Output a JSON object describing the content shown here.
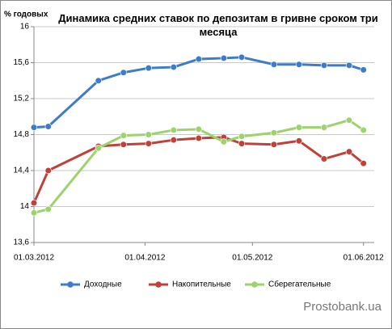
{
  "chart_data": {
    "type": "line",
    "title": "Динамика средних ставок по депозитам в гривне сроком три месяца",
    "y_label": "% годовых",
    "watermark": "Prostobank.ua",
    "x": [
      "2012-03-01",
      "2012-03-05",
      "2012-03-19",
      "2012-03-26",
      "2012-04-02",
      "2012-04-09",
      "2012-04-16",
      "2012-04-23",
      "2012-04-28",
      "2012-05-07",
      "2012-05-14",
      "2012-05-21",
      "2012-05-28",
      "2012-06-01"
    ],
    "series": [
      {
        "name": "Доходные",
        "color": "#3d7cc9",
        "values": [
          14.88,
          14.89,
          15.4,
          15.49,
          15.54,
          15.55,
          15.64,
          15.65,
          15.66,
          15.58,
          15.58,
          15.57,
          15.57,
          15.52
        ]
      },
      {
        "name": "Накопительные",
        "color": "#c0413a",
        "values": [
          14.04,
          14.4,
          14.67,
          14.69,
          14.7,
          14.74,
          14.76,
          14.77,
          14.7,
          14.69,
          14.73,
          14.53,
          14.61,
          14.48
        ]
      },
      {
        "name": "Сберегательные",
        "color": "#9dd26c",
        "values": [
          13.93,
          13.97,
          14.65,
          14.79,
          14.8,
          14.85,
          14.86,
          14.72,
          14.78,
          14.82,
          14.88,
          14.88,
          14.96,
          14.85
        ]
      }
    ],
    "xlim": [
      "2012-03-01",
      "2012-06-04"
    ],
    "xticks": [
      {
        "value": "2012-03-01",
        "label": "01.03.2012"
      },
      {
        "value": "2012-04-01",
        "label": "01.04.2012"
      },
      {
        "value": "2012-05-01",
        "label": "01.05.2012"
      },
      {
        "value": "2012-06-01",
        "label": "01.06.2012"
      }
    ],
    "ylim": [
      13.6,
      16
    ],
    "yticks": [
      {
        "value": 13.6,
        "label": "13,6"
      },
      14,
      {
        "value": 14.4,
        "label": "14,4"
      },
      {
        "value": 14.8,
        "label": "14,8"
      },
      {
        "value": 15.2,
        "label": "15,2"
      },
      {
        "value": 15.6,
        "label": "15,6"
      },
      16
    ],
    "grid": true,
    "legend": "bottom"
  }
}
